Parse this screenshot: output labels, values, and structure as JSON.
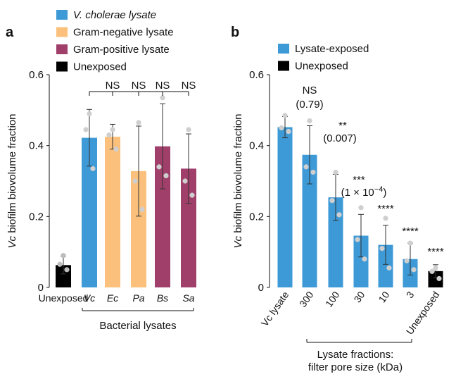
{
  "panels": {
    "a": "a",
    "b": "b"
  },
  "colors": {
    "vc": "#3d9ad7",
    "gram_negative": "#fbc07c",
    "gram_positive": "#a03f6a",
    "unexposed": "#000000",
    "dot": "#c8c8c8"
  },
  "chart_data": [
    {
      "panel": "a",
      "type": "bar",
      "ylabel_italic": "Vc",
      "ylabel_rest": " biofilm biovolume fraction",
      "ylim": [
        0,
        0.6
      ],
      "yticks": [
        "0",
        "0.2",
        "0.4",
        "0.6"
      ],
      "legend": [
        {
          "label": "V. cholerae lysate",
          "italic": true,
          "color": "#3d9ad7"
        },
        {
          "label": "Gram-negative lysate",
          "italic": false,
          "color": "#fbc07c"
        },
        {
          "label": "Gram-positive lysate",
          "italic": false,
          "color": "#a03f6a"
        },
        {
          "label": "Unexposed",
          "italic": false,
          "color": "#000000"
        }
      ],
      "categories": [
        "Unexposed",
        "Vc",
        "Ec",
        "Pa",
        "Bs",
        "Sa"
      ],
      "category_italic": [
        false,
        true,
        true,
        true,
        true,
        true
      ],
      "colors": [
        "#000000",
        "#3d9ad7",
        "#fbc07c",
        "#fbc07c",
        "#a03f6a",
        "#a03f6a"
      ],
      "values": [
        0.063,
        0.422,
        0.425,
        0.328,
        0.398,
        0.335
      ],
      "err": [
        0.025,
        0.08,
        0.035,
        0.127,
        0.12,
        0.098
      ],
      "points": [
        [
          0.09,
          0.065,
          0.05
        ],
        [
          0.49,
          0.445,
          0.335
        ],
        [
          0.445,
          0.43,
          0.39
        ],
        [
          0.465,
          0.3,
          0.22
        ],
        [
          0.535,
          0.34,
          0.315
        ],
        [
          0.445,
          0.3,
          0.26
        ]
      ],
      "significance": [
        "",
        "",
        "NS",
        "NS",
        "NS",
        "NS"
      ],
      "group_label": "Bacterial lysates"
    },
    {
      "panel": "b",
      "type": "bar",
      "ylabel_italic": "Vc",
      "ylabel_rest": " biofilm biovolume fraction",
      "ylim": [
        0,
        0.6
      ],
      "yticks": [
        "0",
        "0.2",
        "0.4",
        "0.6"
      ],
      "legend": [
        {
          "label": "Lysate-exposed",
          "italic": false,
          "color": "#3d9ad7"
        },
        {
          "label": "Unexposed",
          "italic": false,
          "color": "#000000"
        }
      ],
      "categories": [
        "Vc lysate",
        "300",
        "100",
        "30",
        "10",
        "3",
        "Unexposed"
      ],
      "colors": [
        "#3d9ad7",
        "#3d9ad7",
        "#3d9ad7",
        "#3d9ad7",
        "#3d9ad7",
        "#3d9ad7",
        "#000000"
      ],
      "values": [
        0.452,
        0.374,
        0.254,
        0.146,
        0.12,
        0.08,
        0.046
      ],
      "err": [
        0.03,
        0.082,
        0.065,
        0.06,
        0.055,
        0.045,
        0.018
      ],
      "points": [
        [
          0.485,
          0.45,
          0.44
        ],
        [
          0.47,
          0.34,
          0.325
        ],
        [
          0.325,
          0.245,
          0.205
        ],
        [
          0.225,
          0.135,
          0.08
        ],
        [
          0.195,
          0.11,
          0.055
        ],
        [
          0.125,
          0.075,
          0.05
        ],
        [
          0.055,
          0.045,
          0.025
        ]
      ],
      "significance": [
        {
          "line1": "",
          "line2": ""
        },
        {
          "line1": "NS",
          "line2": "(0.79)"
        },
        {
          "line1": "**",
          "line2": "(0.007)"
        },
        {
          "line1": "***",
          "line2": "(1 × 10",
          "exp": "−4",
          "tail": ")"
        },
        {
          "line1": "****",
          "line2": ""
        },
        {
          "line1": "****",
          "line2": ""
        },
        {
          "line1": "****",
          "line2": ""
        }
      ],
      "group_label_line1": "Lysate fractions:",
      "group_label_line2": "filter pore size (kDa)"
    }
  ]
}
